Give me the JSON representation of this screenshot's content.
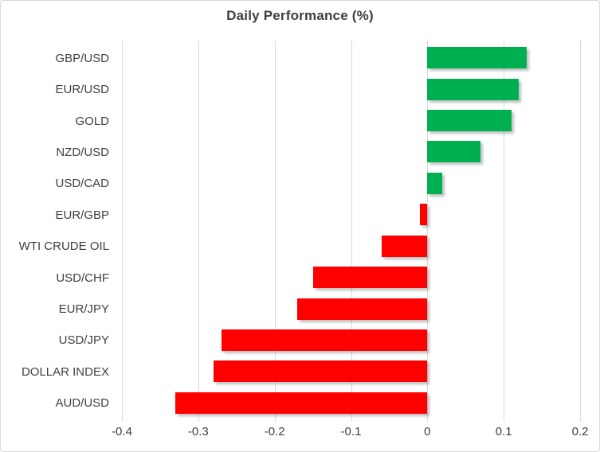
{
  "chart_data": {
    "type": "bar",
    "orientation": "horizontal",
    "title": "Daily Performance (%)",
    "categories": [
      "GBP/USD",
      "EUR/USD",
      "GOLD",
      "NZD/USD",
      "USD/CAD",
      "EUR/GBP",
      "WTI CRUDE OIL",
      "USD/CHF",
      "EUR/JPY",
      "USD/JPY",
      "DOLLAR INDEX",
      "AUD/USD"
    ],
    "values": [
      0.13,
      0.12,
      0.11,
      0.07,
      0.02,
      -0.01,
      -0.06,
      -0.15,
      -0.17,
      -0.27,
      -0.28,
      -0.33
    ],
    "xlabel": "",
    "ylabel": "",
    "xlim": [
      -0.4,
      0.2
    ],
    "xticks": [
      -0.4,
      -0.3,
      -0.2,
      -0.1,
      0,
      0.1,
      0.2
    ],
    "xtick_labels": [
      "-0.4",
      "-0.3",
      "-0.2",
      "-0.1",
      "0",
      "0.1",
      "0.2"
    ],
    "grid": true,
    "legend": false,
    "positive_color": "#00b050",
    "negative_color": "#ff0000",
    "gridline_color": "#d9d9d9",
    "text_color": "#404040",
    "title_color": "#3f3f3f"
  }
}
